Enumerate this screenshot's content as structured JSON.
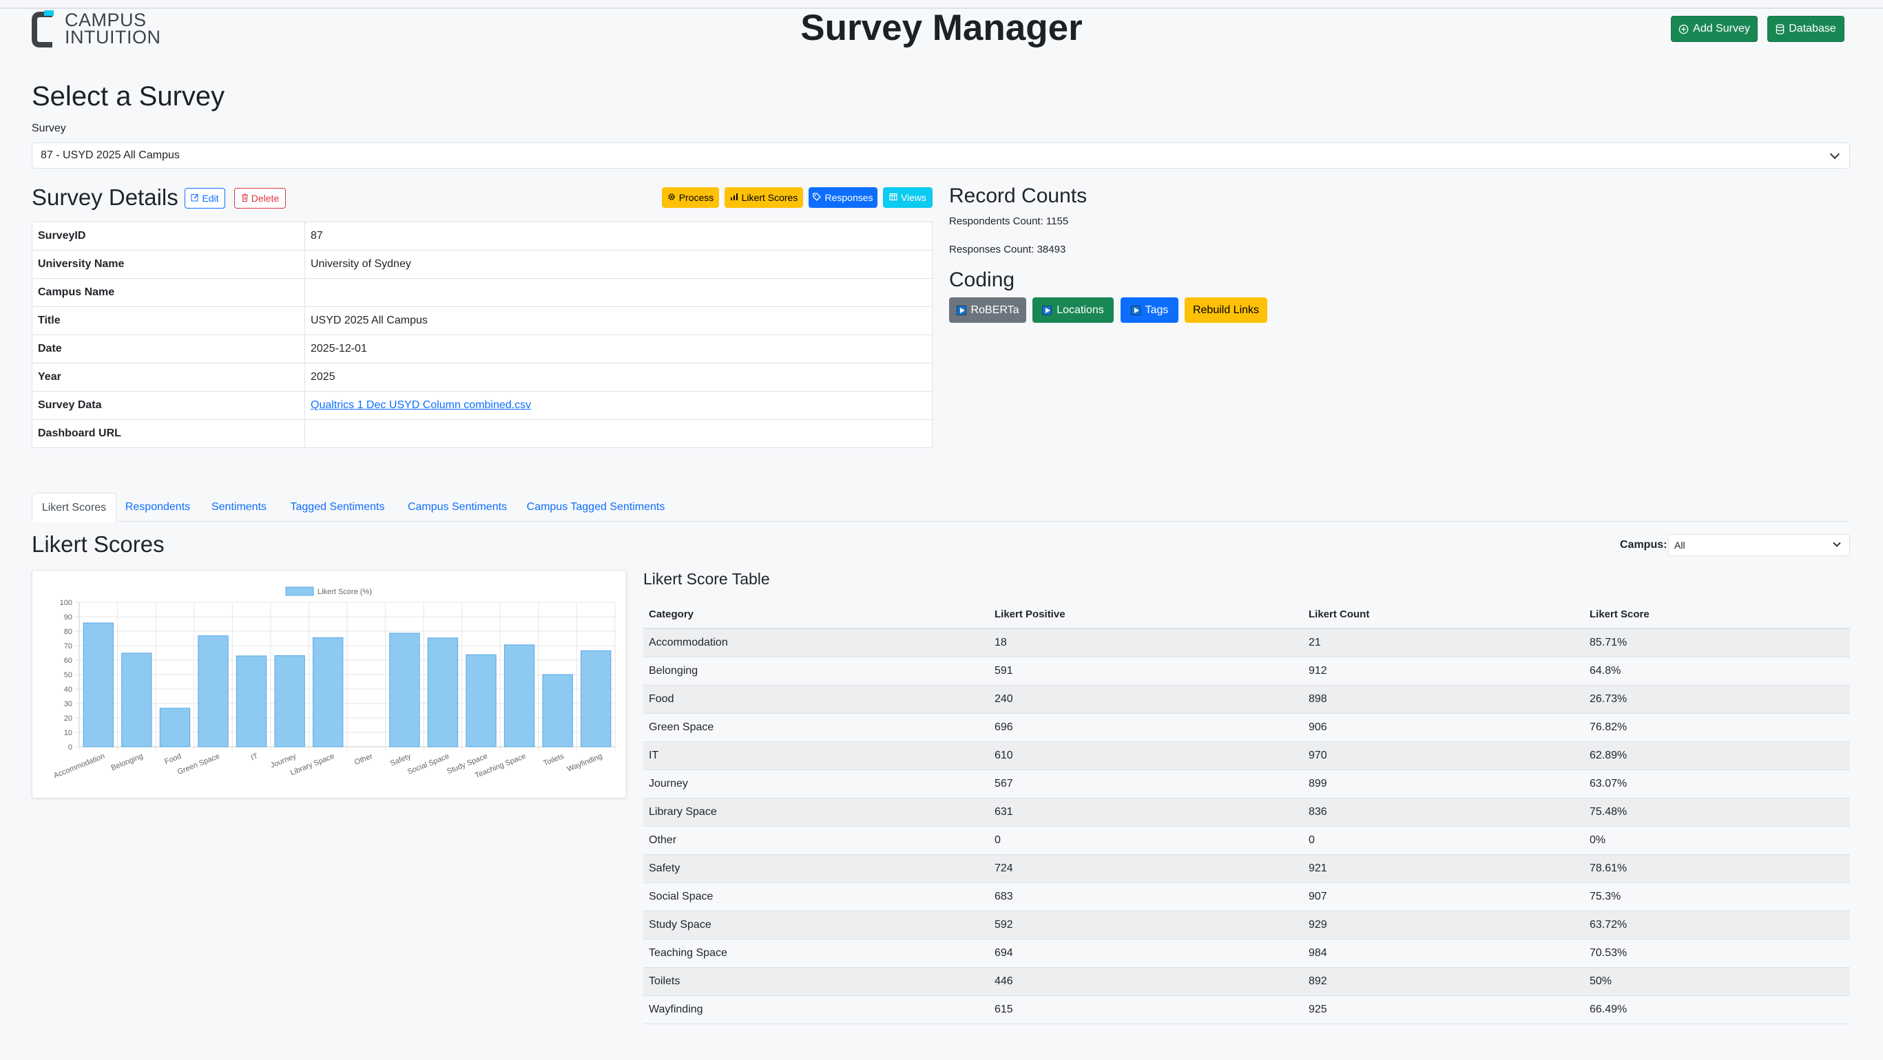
{
  "header": {
    "logo_line1": "CAMPUS",
    "logo_line2": "INTUITION",
    "title": "Survey Manager",
    "add_survey_label": "Add Survey",
    "database_label": "Database"
  },
  "select": {
    "heading": "Select a Survey",
    "label": "Survey",
    "value": "87 - USYD 2025 All Campus"
  },
  "details": {
    "heading": "Survey Details",
    "edit_label": "Edit",
    "delete_label": "Delete",
    "actions": {
      "process": "Process",
      "likert": "Likert Scores",
      "responses": "Responses",
      "views": "Views"
    },
    "rows": [
      {
        "key": "SurveyID",
        "value": "87"
      },
      {
        "key": "University Name",
        "value": "University of Sydney"
      },
      {
        "key": "Campus Name",
        "value": ""
      },
      {
        "key": "Title",
        "value": "USYD 2025 All Campus"
      },
      {
        "key": "Date",
        "value": "2025-12-01"
      },
      {
        "key": "Year",
        "value": "2025"
      },
      {
        "key": "Survey Data",
        "value": "Qualtrics 1 Dec USYD Column combined.csv"
      },
      {
        "key": "Dashboard URL",
        "value": ""
      }
    ]
  },
  "record_counts": {
    "heading": "Record Counts",
    "respondents": "Respondents Count: 1155",
    "responses": "Responses Count: 38493"
  },
  "coding": {
    "heading": "Coding",
    "roberta": "RoBERTa",
    "locations": "Locations",
    "tags": "Tags",
    "rebuild": "Rebuild Links"
  },
  "tabs": [
    "Likert Scores",
    "Respondents",
    "Sentiments",
    "Tagged Sentiments",
    "Campus Sentiments",
    "Campus Tagged Sentiments"
  ],
  "likert": {
    "heading": "Likert Scores",
    "campus_label": "Campus:",
    "campus_value": "All",
    "table_heading": "Likert Score Table",
    "columns": [
      "Category",
      "Likert Positive",
      "Likert Count",
      "Likert Score"
    ],
    "rows": [
      [
        "Accommodation",
        "18",
        "21",
        "85.71%"
      ],
      [
        "Belonging",
        "591",
        "912",
        "64.8%"
      ],
      [
        "Food",
        "240",
        "898",
        "26.73%"
      ],
      [
        "Green Space",
        "696",
        "906",
        "76.82%"
      ],
      [
        "IT",
        "610",
        "970",
        "62.89%"
      ],
      [
        "Journey",
        "567",
        "899",
        "63.07%"
      ],
      [
        "Library Space",
        "631",
        "836",
        "75.48%"
      ],
      [
        "Other",
        "0",
        "0",
        "0%"
      ],
      [
        "Safety",
        "724",
        "921",
        "78.61%"
      ],
      [
        "Social Space",
        "683",
        "907",
        "75.3%"
      ],
      [
        "Study Space",
        "592",
        "929",
        "63.72%"
      ],
      [
        "Teaching Space",
        "694",
        "984",
        "70.53%"
      ],
      [
        "Toilets",
        "446",
        "892",
        "50%"
      ],
      [
        "Wayfinding",
        "615",
        "925",
        "66.49%"
      ]
    ]
  },
  "chart_data": {
    "type": "bar",
    "categories": [
      "Accommodation",
      "Belonging",
      "Food",
      "Green Space",
      "IT",
      "Journey",
      "Library Space",
      "Other",
      "Safety",
      "Social Space",
      "Study Space",
      "Teaching Space",
      "Toilets",
      "Wayfinding"
    ],
    "series": [
      {
        "name": "Likert Score (%)",
        "values": [
          85.71,
          64.8,
          26.73,
          76.82,
          62.89,
          63.07,
          75.48,
          0,
          78.61,
          75.3,
          63.72,
          70.53,
          50,
          66.49
        ]
      }
    ],
    "yticks": [
      "0",
      "10",
      "20",
      "30",
      "40",
      "50",
      "60",
      "70",
      "80",
      "90",
      "100"
    ],
    "ylim": [
      0,
      100
    ],
    "grid": true,
    "legend": "top-center",
    "colors": {
      "fill": "#8ec9f2",
      "stroke": "#5aa9e6"
    }
  }
}
